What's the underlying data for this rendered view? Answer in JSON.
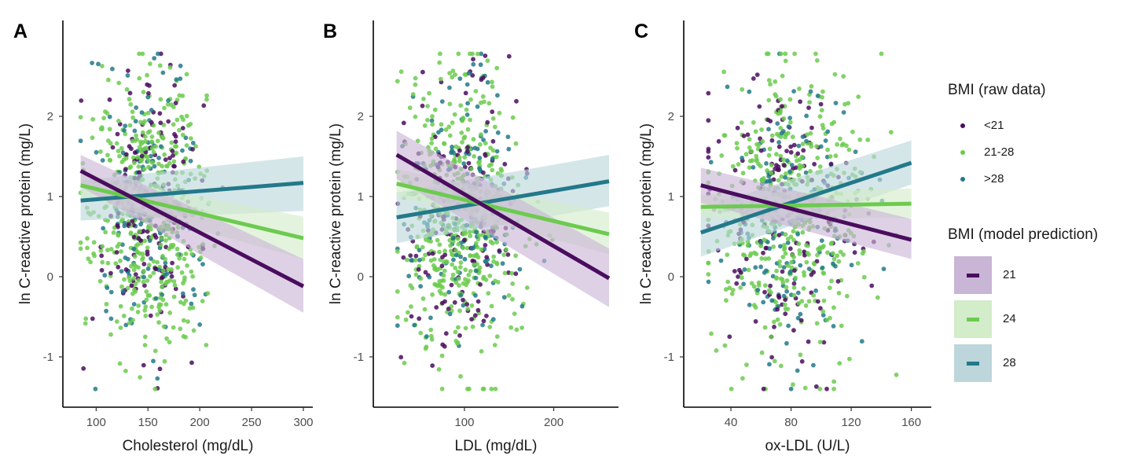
{
  "colors": {
    "bmi_low": "#4a0d5e",
    "bmi_mid": "#6ccb4f",
    "bmi_high": "#23798a",
    "band_low": "#c9b5d6",
    "band_mid": "#d3ecca",
    "band_high": "#bcd6db",
    "axis": "#000000"
  },
  "legend": {
    "raw_title": "BMI (raw data)",
    "raw_items": [
      {
        "label": "<21",
        "color": "#4a0d5e"
      },
      {
        "label": "21-28",
        "color": "#6ccb4f"
      },
      {
        "label": ">28",
        "color": "#23798a"
      }
    ],
    "model_title": "BMI (model prediction)",
    "model_items": [
      {
        "label": "21",
        "line": "#4a0d5e",
        "band": "#c9b5d6"
      },
      {
        "label": "24",
        "line": "#6ccb4f",
        "band": "#d3ecca"
      },
      {
        "label": "28",
        "line": "#23798a",
        "band": "#bcd6db"
      }
    ]
  },
  "chart_data": [
    {
      "panel": "A",
      "type": "scatter",
      "xlabel": "Cholesterol (mg/dL)",
      "ylabel": "ln C-reactive  protein  (mg/L)",
      "xlim": [
        80,
        300
      ],
      "ylim": [
        -1.5,
        3.0
      ],
      "x_ticks": [
        100,
        150,
        200,
        250,
        300
      ],
      "y_ticks": [
        -1,
        0,
        1,
        2
      ],
      "scatter": {
        "x_center": 150,
        "x_sd": 26,
        "x_min": 85,
        "x_max": 262,
        "y_min": -1.4,
        "y_max": 2.78,
        "n": 820
      },
      "model_lines": [
        {
          "series": "21",
          "x": [
            85,
            300
          ],
          "y": [
            1.32,
            -0.12
          ],
          "band_low": [
            1.12,
            -0.45
          ],
          "band_high": [
            1.52,
            0.22
          ]
        },
        {
          "series": "24",
          "x": [
            85,
            300
          ],
          "y": [
            1.14,
            0.48
          ],
          "band_low": [
            1.0,
            0.22
          ],
          "band_high": [
            1.28,
            0.75
          ]
        },
        {
          "series": "28",
          "x": [
            85,
            300
          ],
          "y": [
            0.95,
            1.17
          ],
          "band_low": [
            0.7,
            0.82
          ],
          "band_high": [
            1.2,
            1.5
          ]
        }
      ]
    },
    {
      "panel": "B",
      "type": "scatter",
      "xlabel": "LDL (mg/dL)",
      "ylabel": "ln C-reactive  protein  (mg/L)",
      "xlim": [
        12,
        262
      ],
      "ylim": [
        -1.5,
        3.0
      ],
      "x_ticks": [
        100,
        200
      ],
      "y_ticks": [
        -1,
        0,
        1,
        2
      ],
      "scatter": {
        "x_center": 95,
        "x_sd": 32,
        "x_min": 25,
        "x_max": 245,
        "y_min": -1.4,
        "y_max": 2.78,
        "n": 820
      },
      "model_lines": [
        {
          "series": "21",
          "x": [
            24,
            262
          ],
          "y": [
            1.52,
            -0.02
          ],
          "band_low": [
            1.22,
            -0.38
          ],
          "band_high": [
            1.82,
            0.35
          ]
        },
        {
          "series": "24",
          "x": [
            24,
            262
          ],
          "y": [
            1.16,
            0.53
          ],
          "band_low": [
            1.0,
            0.28
          ],
          "band_high": [
            1.34,
            0.8
          ]
        },
        {
          "series": "28",
          "x": [
            24,
            262
          ],
          "y": [
            0.74,
            1.19
          ],
          "band_low": [
            0.42,
            0.88
          ],
          "band_high": [
            1.05,
            1.52
          ]
        }
      ]
    },
    {
      "panel": "C",
      "type": "scatter",
      "xlabel": "ox-LDL  (U/L)",
      "ylabel": "ln C-reactive  protein  (mg/L)",
      "xlim": [
        17,
        167
      ],
      "ylim": [
        -1.5,
        3.0
      ],
      "x_ticks": [
        40,
        80,
        120,
        160
      ],
      "y_ticks": [
        -1,
        0,
        1,
        2
      ],
      "scatter": {
        "x_center": 80,
        "x_sd": 25,
        "x_min": 25,
        "x_max": 150,
        "y_min": -1.4,
        "y_max": 2.78,
        "n": 820
      },
      "model_lines": [
        {
          "series": "21",
          "x": [
            20,
            160
          ],
          "y": [
            1.14,
            0.46
          ],
          "band_low": [
            0.92,
            0.22
          ],
          "band_high": [
            1.36,
            0.72
          ]
        },
        {
          "series": "24",
          "x": [
            20,
            160
          ],
          "y": [
            0.87,
            0.91
          ],
          "band_low": [
            0.73,
            0.73
          ],
          "band_high": [
            1.02,
            1.1
          ]
        },
        {
          "series": "28",
          "x": [
            20,
            160
          ],
          "y": [
            0.55,
            1.42
          ],
          "band_low": [
            0.25,
            1.15
          ],
          "band_high": [
            0.85,
            1.7
          ]
        }
      ]
    }
  ]
}
